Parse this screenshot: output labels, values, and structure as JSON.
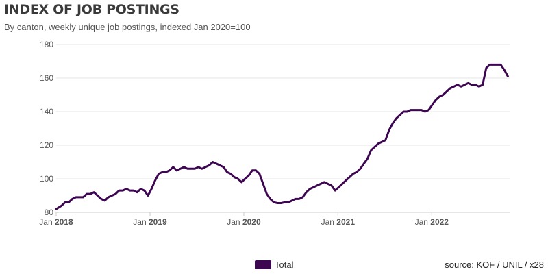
{
  "header": {
    "title": "INDEX OF JOB POSTINGS",
    "subtitle": "By canton, weekly unique job postings, indexed Jan 2020=100"
  },
  "footer": {
    "source": "source: KOF / UNIL / x28"
  },
  "colors": {
    "series": "#3d0651",
    "grid": "#e6e6e6",
    "axis": "#cccccc"
  },
  "chart_data": {
    "type": "line",
    "title": "INDEX OF JOB POSTINGS",
    "subtitle": "By canton, weekly unique job postings, indexed Jan 2020=100",
    "xlabel": "",
    "ylabel": "",
    "ylim": [
      80,
      180
    ],
    "xlim": [
      "2018-01-01",
      "2022-10-31"
    ],
    "yticks": [
      80,
      100,
      120,
      140,
      160,
      180
    ],
    "xticks": [
      {
        "date": "2018-01-01",
        "month": "Jan",
        "year": "2018"
      },
      {
        "date": "2019-01-01",
        "month": "Jan",
        "year": "2019"
      },
      {
        "date": "2020-01-01",
        "month": "Jan",
        "year": "2020"
      },
      {
        "date": "2021-01-01",
        "month": "Jan",
        "year": "2021"
      },
      {
        "date": "2022-01-01",
        "month": "Jan",
        "year": "2022"
      }
    ],
    "grid": true,
    "legend": "bottom-center",
    "series": [
      {
        "name": "Total",
        "color": "#3d0651",
        "points": [
          [
            "2018-01-01",
            82
          ],
          [
            "2018-01-22",
            84
          ],
          [
            "2018-02-05",
            86
          ],
          [
            "2018-02-19",
            86
          ],
          [
            "2018-03-05",
            88
          ],
          [
            "2018-03-19",
            89
          ],
          [
            "2018-04-02",
            89
          ],
          [
            "2018-04-16",
            89
          ],
          [
            "2018-04-30",
            91
          ],
          [
            "2018-05-14",
            91
          ],
          [
            "2018-05-28",
            92
          ],
          [
            "2018-06-11",
            90
          ],
          [
            "2018-06-25",
            88
          ],
          [
            "2018-07-09",
            87
          ],
          [
            "2018-07-23",
            89
          ],
          [
            "2018-08-06",
            90
          ],
          [
            "2018-08-20",
            91
          ],
          [
            "2018-09-03",
            93
          ],
          [
            "2018-09-17",
            93
          ],
          [
            "2018-10-01",
            94
          ],
          [
            "2018-10-15",
            93
          ],
          [
            "2018-10-29",
            93
          ],
          [
            "2018-11-12",
            92
          ],
          [
            "2018-11-26",
            94
          ],
          [
            "2018-12-10",
            93
          ],
          [
            "2018-12-24",
            90
          ],
          [
            "2019-01-07",
            94
          ],
          [
            "2019-01-21",
            99
          ],
          [
            "2019-02-04",
            103
          ],
          [
            "2019-02-18",
            104
          ],
          [
            "2019-03-04",
            104
          ],
          [
            "2019-03-18",
            105
          ],
          [
            "2019-04-01",
            107
          ],
          [
            "2019-04-15",
            105
          ],
          [
            "2019-04-29",
            106
          ],
          [
            "2019-05-13",
            107
          ],
          [
            "2019-05-27",
            106
          ],
          [
            "2019-06-10",
            106
          ],
          [
            "2019-06-24",
            106
          ],
          [
            "2019-07-08",
            107
          ],
          [
            "2019-07-22",
            106
          ],
          [
            "2019-08-05",
            107
          ],
          [
            "2019-08-19",
            108
          ],
          [
            "2019-09-02",
            110
          ],
          [
            "2019-09-16",
            109
          ],
          [
            "2019-09-30",
            108
          ],
          [
            "2019-10-14",
            107
          ],
          [
            "2019-10-28",
            104
          ],
          [
            "2019-11-11",
            103
          ],
          [
            "2019-11-25",
            101
          ],
          [
            "2019-12-09",
            100
          ],
          [
            "2019-12-23",
            98
          ],
          [
            "2020-01-06",
            100
          ],
          [
            "2020-01-20",
            102
          ],
          [
            "2020-02-03",
            105
          ],
          [
            "2020-02-17",
            105
          ],
          [
            "2020-03-02",
            103
          ],
          [
            "2020-03-16",
            97
          ],
          [
            "2020-03-30",
            91
          ],
          [
            "2020-04-13",
            88
          ],
          [
            "2020-04-27",
            86
          ],
          [
            "2020-05-11",
            85.5
          ],
          [
            "2020-05-25",
            85.5
          ],
          [
            "2020-06-08",
            86
          ],
          [
            "2020-06-22",
            86
          ],
          [
            "2020-07-06",
            87
          ],
          [
            "2020-07-20",
            88
          ],
          [
            "2020-08-03",
            88
          ],
          [
            "2020-08-17",
            89
          ],
          [
            "2020-08-31",
            92
          ],
          [
            "2020-09-14",
            94
          ],
          [
            "2020-09-28",
            95
          ],
          [
            "2020-10-12",
            96
          ],
          [
            "2020-10-26",
            97
          ],
          [
            "2020-11-09",
            98
          ],
          [
            "2020-11-23",
            97
          ],
          [
            "2020-12-07",
            96
          ],
          [
            "2020-12-21",
            93
          ],
          [
            "2021-01-04",
            95
          ],
          [
            "2021-01-18",
            97
          ],
          [
            "2021-02-01",
            99
          ],
          [
            "2021-02-15",
            101
          ],
          [
            "2021-03-01",
            103
          ],
          [
            "2021-03-15",
            104
          ],
          [
            "2021-03-29",
            106
          ],
          [
            "2021-04-12",
            109
          ],
          [
            "2021-04-26",
            112
          ],
          [
            "2021-05-10",
            117
          ],
          [
            "2021-05-24",
            119
          ],
          [
            "2021-06-07",
            121
          ],
          [
            "2021-06-21",
            122
          ],
          [
            "2021-07-05",
            123
          ],
          [
            "2021-07-19",
            129
          ],
          [
            "2021-08-02",
            133
          ],
          [
            "2021-08-16",
            136
          ],
          [
            "2021-08-30",
            138
          ],
          [
            "2021-09-13",
            140
          ],
          [
            "2021-09-27",
            140
          ],
          [
            "2021-10-11",
            141
          ],
          [
            "2021-10-25",
            141
          ],
          [
            "2021-11-08",
            141
          ],
          [
            "2021-11-22",
            141
          ],
          [
            "2021-12-06",
            140
          ],
          [
            "2021-12-20",
            141
          ],
          [
            "2022-01-03",
            144
          ],
          [
            "2022-01-17",
            147
          ],
          [
            "2022-01-31",
            149
          ],
          [
            "2022-02-14",
            150
          ],
          [
            "2022-02-28",
            152
          ],
          [
            "2022-03-14",
            154
          ],
          [
            "2022-03-28",
            155
          ],
          [
            "2022-04-11",
            156
          ],
          [
            "2022-04-25",
            155
          ],
          [
            "2022-05-09",
            156
          ],
          [
            "2022-05-23",
            157
          ],
          [
            "2022-06-06",
            156
          ],
          [
            "2022-06-20",
            156
          ],
          [
            "2022-07-04",
            155
          ],
          [
            "2022-07-18",
            156
          ],
          [
            "2022-08-01",
            166
          ],
          [
            "2022-08-15",
            168
          ],
          [
            "2022-08-29",
            168
          ],
          [
            "2022-09-12",
            168
          ],
          [
            "2022-09-26",
            168
          ],
          [
            "2022-10-10",
            165
          ],
          [
            "2022-10-24",
            161
          ]
        ]
      }
    ]
  }
}
